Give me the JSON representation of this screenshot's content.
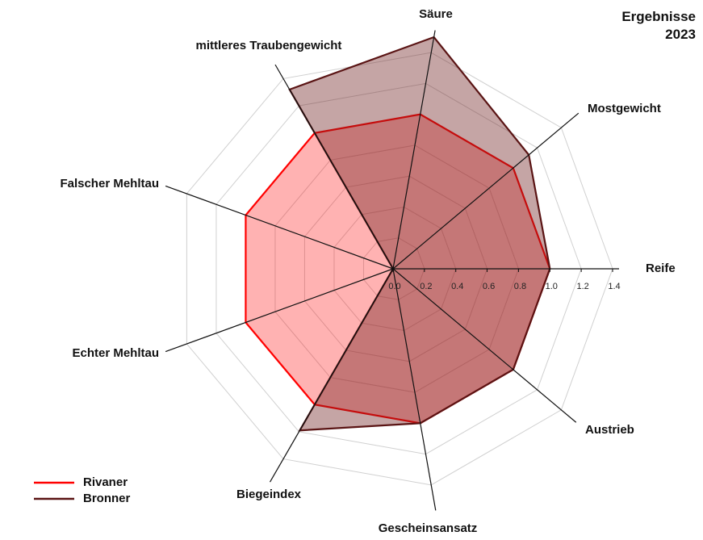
{
  "chart_data": {
    "type": "radar",
    "title": "Ergebnisse 2023",
    "categories": [
      "Reife",
      "Mostgewicht",
      "Säure",
      "mittleres Traubengewicht",
      "Falscher Mehltau",
      "Echter Mehltau",
      "Biegeindex",
      "Gescheinsansatz",
      "Austrieb"
    ],
    "series": [
      {
        "name": "Rivaner",
        "color": "#ff0000",
        "values": [
          1.0,
          1.0,
          1.0,
          1.0,
          1.0,
          1.0,
          1.0,
          1.0,
          1.0
        ]
      },
      {
        "name": "Bronner",
        "color": "#5a1414",
        "values": [
          1.0,
          1.13,
          1.5,
          1.32,
          0,
          0,
          1.19,
          1.0,
          1.0
        ]
      }
    ],
    "rlim": [
      0,
      1.4
    ],
    "rticks": [
      {
        "value": 0,
        "label": "0.0"
      },
      0.2,
      0.4,
      0.6,
      0.8,
      {
        "value": 1,
        "label": "1.0"
      },
      1.2,
      1.4
    ],
    "grid": true,
    "legend": "lower left"
  }
}
